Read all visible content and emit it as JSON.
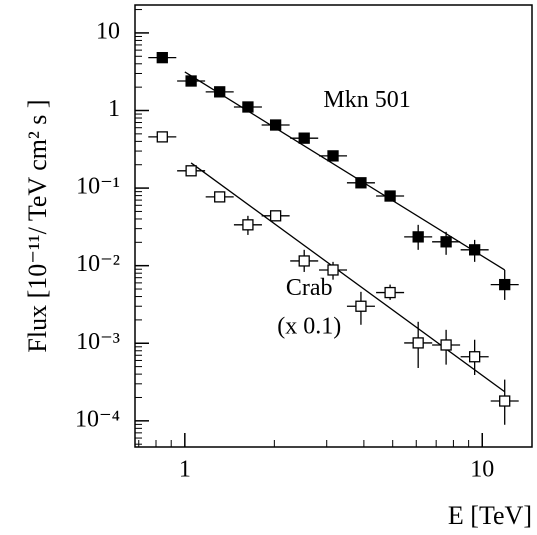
{
  "chart_data": {
    "type": "scatter",
    "xlabel": "E [TeV]",
    "ylabel": "Flux [10⁻¹¹/ TeV cm² s ]",
    "xscale": "log",
    "yscale": "log",
    "xlim": [
      0.68,
      14.7
    ],
    "ylim": [
      4.6e-05,
      22.9
    ],
    "xticks": [
      1,
      10
    ],
    "yticks": [
      {
        "value": 0.0001,
        "label": "10⁻⁴"
      },
      {
        "value": 0.001,
        "label": "10⁻³"
      },
      {
        "value": 0.01,
        "label": "10⁻²"
      },
      {
        "value": 0.1,
        "label": "10⁻¹"
      },
      1,
      10
    ],
    "annotations": [
      {
        "text": "Mkn 501",
        "x": 4.1,
        "y": 1.3
      },
      {
        "text": "Crab",
        "x": 2.62,
        "y": 0.0049
      },
      {
        "text": "(x 0.1)",
        "x": 2.62,
        "y": 0.00157
      }
    ],
    "series": [
      {
        "marker": "filled",
        "color": "#000000",
        "x": [
          0.84,
          1.05,
          1.31,
          1.63,
          2.02,
          2.52,
          3.15,
          3.91,
          4.9,
          6.09,
          7.56,
          9.43,
          11.9
        ],
        "values": [
          4.8,
          2.4,
          1.74,
          1.11,
          0.65,
          0.44,
          0.26,
          0.117,
          0.079,
          0.0235,
          0.0203,
          0.016,
          0.0057
        ],
        "ylow": [
          null,
          null,
          null,
          null,
          null,
          null,
          null,
          null,
          null,
          0.016,
          0.0138,
          0.0112,
          0.00362
        ],
        "yhigh": [
          null,
          null,
          null,
          null,
          null,
          null,
          null,
          null,
          null,
          0.0336,
          0.0273,
          0.0215,
          0.0088
        ]
      },
      {
        "marker": "open",
        "color": "#000000",
        "x": [
          0.84,
          1.05,
          1.31,
          1.63,
          2.02,
          2.52,
          3.15,
          3.91,
          4.9,
          6.09,
          7.56,
          9.43,
          11.9
        ],
        "values": [
          0.457,
          0.167,
          0.077,
          0.0336,
          0.0439,
          0.0115,
          0.0088,
          0.003,
          0.0045,
          0.00101,
          0.00095,
          0.00067,
          0.00018
        ],
        "ylow": [
          null,
          null,
          null,
          0.0249,
          null,
          0.0083,
          0.0066,
          0.00173,
          0.00362,
          0.00048,
          0.00053,
          0.00039,
          8.9e-05
        ],
        "yhigh": [
          null,
          null,
          null,
          0.0439,
          null,
          0.016,
          0.0112,
          0.0046,
          0.0057,
          0.00189,
          0.00149,
          0.00111,
          0.00034
        ]
      }
    ],
    "fits": [
      {
        "x": [
          1.0,
          11.9
        ],
        "values": [
          3.14,
          0.0088
        ]
      },
      {
        "x": [
          1.05,
          11.9
        ],
        "values": [
          0.211,
          0.000237
        ]
      }
    ]
  }
}
